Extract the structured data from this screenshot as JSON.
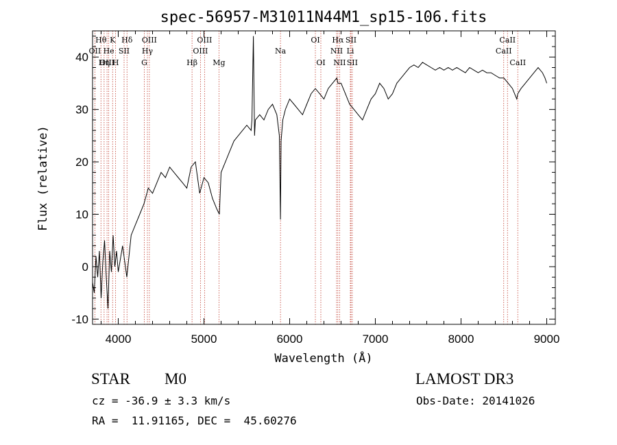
{
  "chart_data": {
    "type": "line",
    "title": "spec-56957-M31011N44M1_sp15-106.fits",
    "xlabel": "Wavelength (Å)",
    "ylabel": "Flux (relative)",
    "xlim": [
      3700,
      9100
    ],
    "ylim": [
      -11,
      45
    ],
    "xticks": [
      4000,
      5000,
      6000,
      7000,
      8000,
      9000
    ],
    "yticks": [
      -10,
      0,
      10,
      20,
      30,
      40
    ],
    "grid": false,
    "series": [
      {
        "name": "flux",
        "x": [
          3700,
          3720,
          3740,
          3760,
          3780,
          3800,
          3820,
          3840,
          3860,
          3880,
          3900,
          3920,
          3940,
          3960,
          3980,
          4000,
          4050,
          4100,
          4150,
          4200,
          4250,
          4300,
          4350,
          4400,
          4450,
          4500,
          4550,
          4600,
          4650,
          4700,
          4750,
          4800,
          4850,
          4900,
          4950,
          5000,
          5050,
          5100,
          5150,
          5180,
          5200,
          5250,
          5300,
          5350,
          5400,
          5450,
          5500,
          5550,
          5560,
          5577,
          5590,
          5600,
          5650,
          5700,
          5750,
          5800,
          5850,
          5880,
          5893,
          5900,
          5920,
          5950,
          6000,
          6050,
          6100,
          6150,
          6200,
          6250,
          6300,
          6350,
          6400,
          6450,
          6500,
          6550,
          6563,
          6600,
          6650,
          6700,
          6750,
          6800,
          6850,
          6900,
          6950,
          7000,
          7050,
          7100,
          7150,
          7200,
          7250,
          7300,
          7350,
          7400,
          7450,
          7500,
          7550,
          7600,
          7650,
          7700,
          7750,
          7800,
          7850,
          7900,
          7950,
          8000,
          8050,
          8100,
          8150,
          8200,
          8250,
          8300,
          8350,
          8400,
          8450,
          8500,
          8550,
          8600,
          8650,
          8662,
          8700,
          8750,
          8800,
          8850,
          8900,
          8950,
          8980,
          9000
        ],
        "y": [
          -3,
          -5,
          2,
          -2,
          3,
          -6,
          1,
          5,
          -2,
          -8,
          3,
          -1,
          6,
          0,
          3,
          -1,
          4,
          -2,
          6,
          8,
          10,
          12,
          15,
          14,
          16,
          18,
          17,
          19,
          18,
          17,
          16,
          15,
          19,
          20,
          14,
          17,
          16,
          13,
          11,
          10,
          18,
          20,
          22,
          24,
          25,
          26,
          27,
          26,
          28,
          44,
          25,
          28,
          29,
          28,
          30,
          31,
          29,
          25,
          9,
          24,
          28,
          30,
          32,
          31,
          30,
          29,
          31,
          33,
          34,
          33,
          32,
          34,
          35,
          36,
          35,
          35,
          33,
          31,
          30,
          29,
          28,
          30,
          32,
          33,
          35,
          34,
          32,
          33,
          35,
          36,
          37,
          38,
          38.5,
          38,
          39,
          38.5,
          38,
          37.5,
          38,
          37.5,
          38,
          37.5,
          38,
          37.5,
          37,
          38,
          37.5,
          37,
          37.5,
          37,
          37,
          36.5,
          36,
          36,
          35,
          34,
          32,
          33,
          34,
          35,
          36,
          37,
          38,
          37,
          36,
          35
        ]
      }
    ],
    "lines": [
      {
        "label": "Hθ",
        "x": 3798,
        "row": 1
      },
      {
        "label": "K",
        "x": 3934,
        "row": 1
      },
      {
        "label": "Hδ",
        "x": 4102,
        "row": 1
      },
      {
        "label": "OIII",
        "x": 4363,
        "row": 1
      },
      {
        "label": "OIII",
        "x": 5007,
        "row": 1
      },
      {
        "label": "OI",
        "x": 6300,
        "row": 1
      },
      {
        "label": "Hα",
        "x": 6563,
        "row": 1
      },
      {
        "label": "SII",
        "x": 6716,
        "row": 1
      },
      {
        "label": "CaII",
        "x": 8542,
        "row": 1
      },
      {
        "label": "OII",
        "x": 3727,
        "row": 2
      },
      {
        "label": "He",
        "x": 3889,
        "row": 2
      },
      {
        "label": "SII",
        "x": 4068,
        "row": 2
      },
      {
        "label": "Hγ",
        "x": 4340,
        "row": 2
      },
      {
        "label": "OIII",
        "x": 4959,
        "row": 2
      },
      {
        "label": "Na",
        "x": 5893,
        "row": 2
      },
      {
        "label": "NII",
        "x": 6548,
        "row": 2
      },
      {
        "label": "Li",
        "x": 6708,
        "row": 2
      },
      {
        "label": "CaII",
        "x": 8498,
        "row": 2
      },
      {
        "label": "OIII",
        "x": 3869,
        "row": 3
      },
      {
        "label": "Hη",
        "x": 3835,
        "row": 3
      },
      {
        "label": "H",
        "x": 3969,
        "row": 3
      },
      {
        "label": "G",
        "x": 4304,
        "row": 3
      },
      {
        "label": "Hβ",
        "x": 4861,
        "row": 3
      },
      {
        "label": "Mg",
        "x": 5175,
        "row": 3
      },
      {
        "label": "OI",
        "x": 6364,
        "row": 3
      },
      {
        "label": "NII",
        "x": 6583,
        "row": 3
      },
      {
        "label": "SII",
        "x": 6731,
        "row": 3
      },
      {
        "label": "CaII",
        "x": 8662,
        "row": 3
      }
    ]
  },
  "footer": {
    "object_class": "STAR",
    "subclass": "M0",
    "survey": "LAMOST DR3",
    "redshift_text": "cz = -36.9 ± 3.3 km/s",
    "obs_date_text": "Obs-Date: 20141026",
    "coords_text": "RA =  11.91165, DEC =  45.60276"
  }
}
